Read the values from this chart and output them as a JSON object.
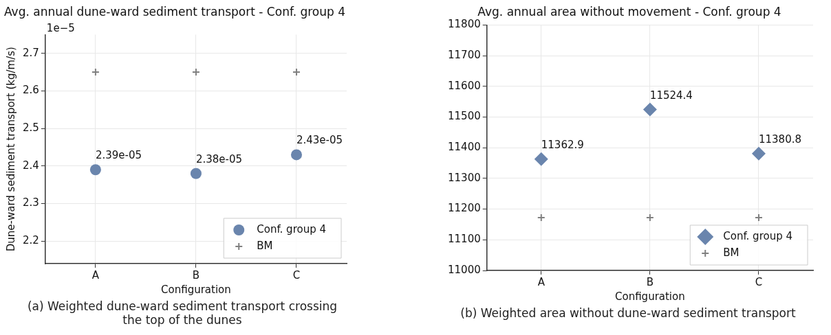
{
  "chart_data": [
    {
      "type": "scatter",
      "title": "Avg. annual dune-ward sediment transport - Conf. group 4",
      "xlabel": "Configuration",
      "ylabel": "Dune-ward sediment transport (kg/m/s)",
      "categories": [
        "A",
        "B",
        "C"
      ],
      "series": [
        {
          "name": "Conf. group 4",
          "color": "#6a85ad",
          "marker": "circle",
          "values": [
            2.39,
            2.38,
            2.43
          ]
        },
        {
          "name": "BM",
          "color": "#808080",
          "marker": "cross",
          "values": [
            2.65,
            2.65,
            2.65
          ]
        }
      ],
      "ylim": [
        2.14,
        2.75
      ],
      "yticks": [
        2.2,
        2.3,
        2.4,
        2.5,
        2.6,
        2.7
      ],
      "grid": true,
      "legend": "bottom right",
      "annotations": [
        "1e−5",
        {
          "text": "2.39e-05",
          "x": "A",
          "y": 2.39
        },
        {
          "text": "2.38e-05",
          "x": "B",
          "y": 2.38
        },
        {
          "text": "2.43e-05",
          "x": "C",
          "y": 2.43
        },
        "(a) Weighted dune-ward sediment transport crossing the top of the dunes"
      ]
    },
    {
      "type": "scatter",
      "title": "Avg. annual area without movement - Conf. group 4",
      "xlabel": "Configuration",
      "categories": [
        "A",
        "B",
        "C"
      ],
      "series": [
        {
          "name": "Conf. group 4",
          "color": "#6a85ad",
          "marker": "diamond",
          "values": [
            11362.9,
            11524.4,
            11380.8
          ],
          "value_labels": [
            "11362.9",
            "11524.4",
            "11380.8"
          ]
        },
        {
          "name": "BM",
          "color": "#808080",
          "marker": "cross",
          "values": [
            11172,
            11172,
            11172
          ]
        }
      ],
      "ylim": [
        11000,
        11800
      ],
      "yticks": [
        11000,
        11100,
        11200,
        11300,
        11400,
        11500,
        11600,
        11700,
        11800
      ],
      "grid": true,
      "legend": "bottom right",
      "annotations": [
        "(b) Weighted area without dune-ward sediment transport"
      ]
    }
  ]
}
